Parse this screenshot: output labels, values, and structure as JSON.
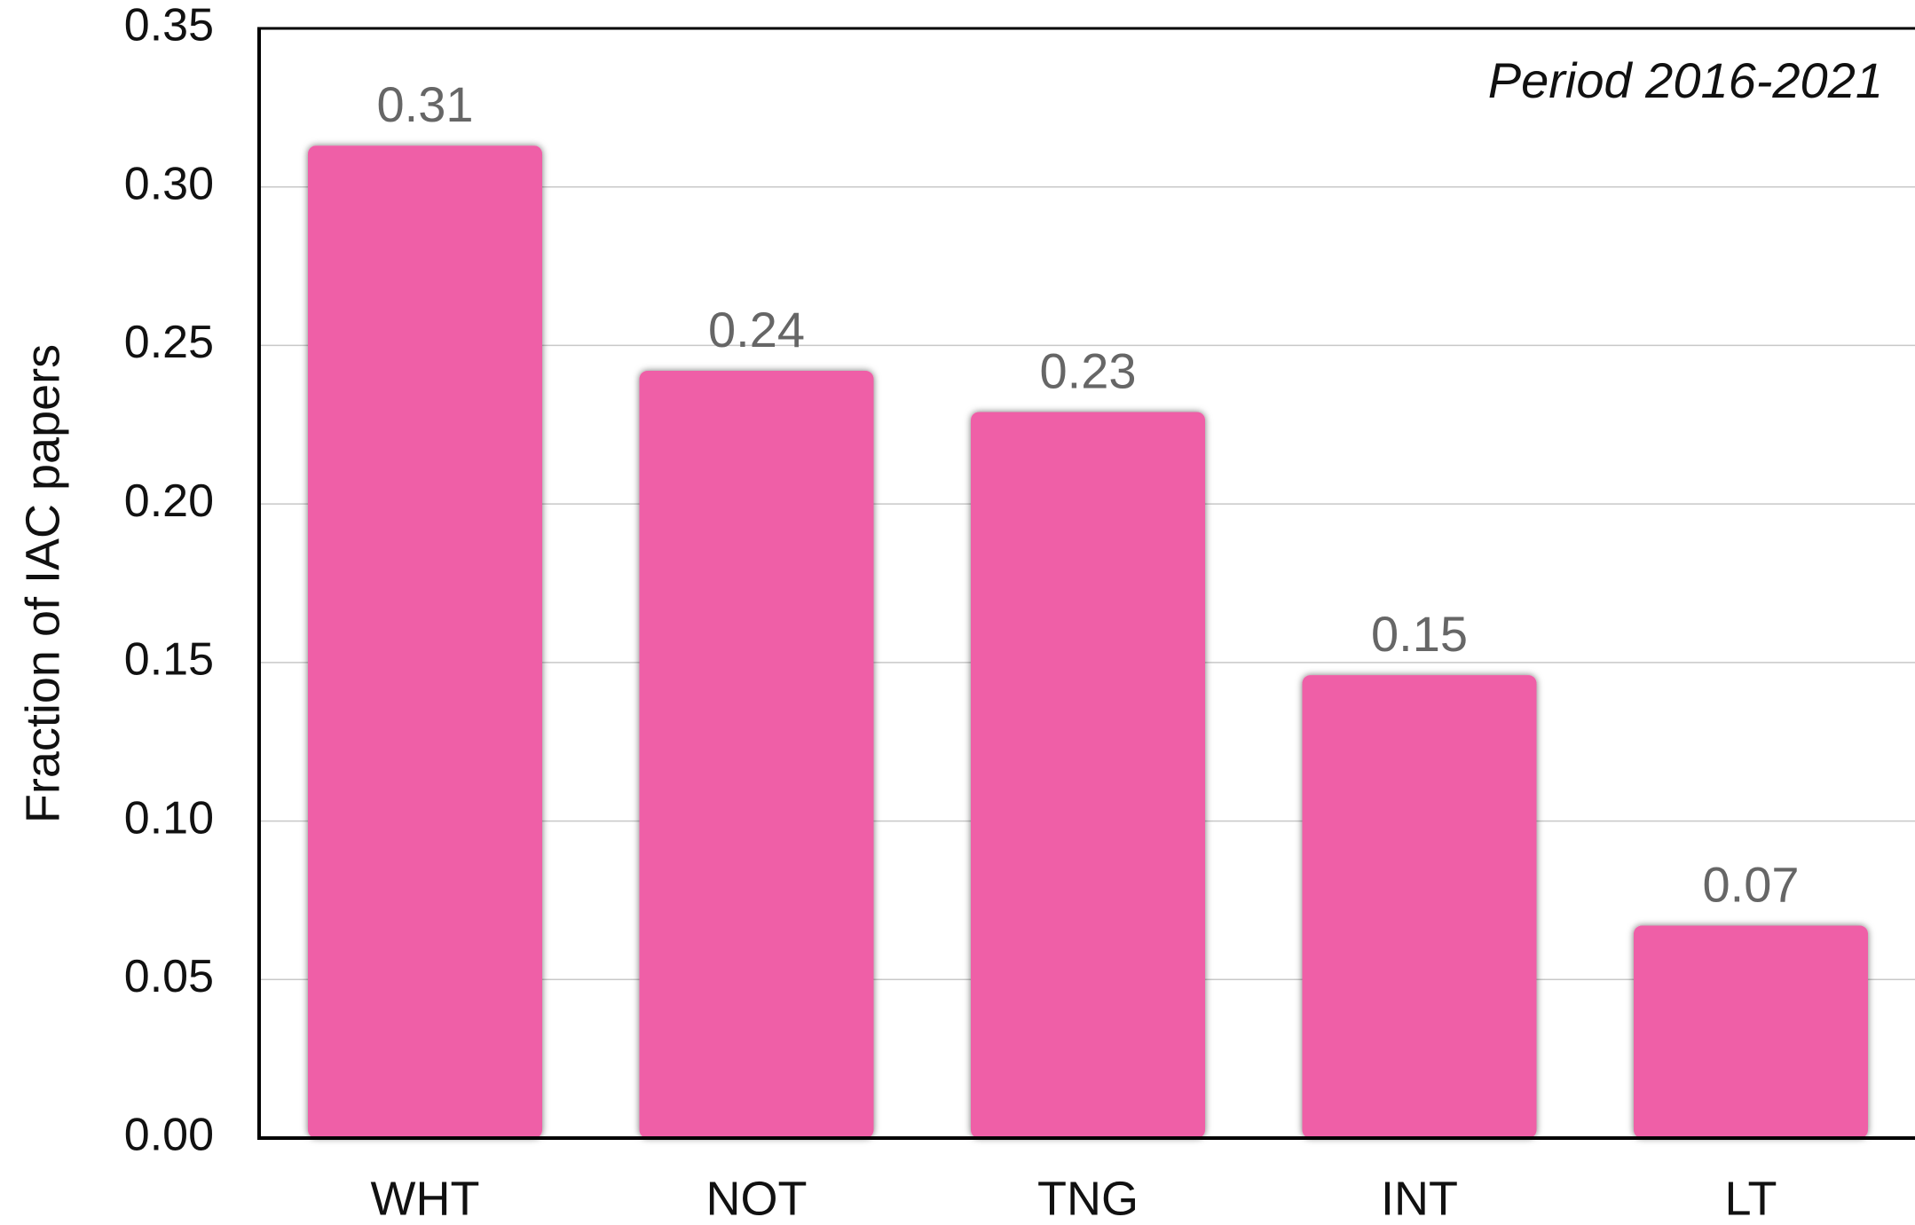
{
  "chart_data": {
    "type": "bar",
    "y_label": "Fraction of IAC papers",
    "annotation": "Period 2016-2021",
    "categories": [
      "WHT",
      "NOT",
      "TNG",
      "INT",
      "LT"
    ],
    "values": [
      0.313,
      0.242,
      0.229,
      0.146,
      0.067
    ],
    "value_labels": [
      "0.31",
      "0.24",
      "0.23",
      "0.15",
      "0.07"
    ],
    "color": "#ef5fa7",
    "ylim": [
      0,
      0.35
    ],
    "yticks": [
      {
        "value": 0,
        "label": "0.00"
      },
      {
        "value": 0.05,
        "label": "0.05"
      },
      {
        "value": 0.1,
        "label": "0.10"
      },
      {
        "value": 0.15,
        "label": "0.15"
      },
      {
        "value": 0.2,
        "label": "0.20"
      },
      {
        "value": 0.25,
        "label": "0.25"
      },
      {
        "value": 0.3,
        "label": "0.30"
      },
      {
        "value": 0.35,
        "label": "0.35"
      }
    ],
    "grid": true
  }
}
